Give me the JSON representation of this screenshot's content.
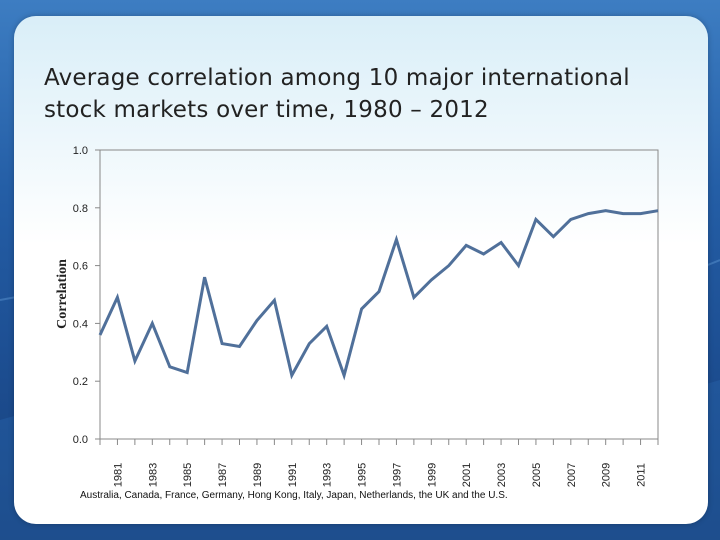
{
  "slide": {
    "title": "Average correlation among 10 major international\nstock markets over time, 1980 – 2012",
    "footnote": "Australia, Canada, France, Germany, Hong Kong, Italy, Japan, Netherlands, the UK and the U.S."
  },
  "colors": {
    "line": "#50709a",
    "axis": "#888888",
    "background_top": "#3d7dc2",
    "background_bottom": "#173f7a"
  },
  "chart_data": {
    "type": "line",
    "title": "Average correlation among 10 major international stock markets over time, 1980 – 2012",
    "xlabel": "",
    "ylabel": "Correlation",
    "ylim": [
      0.0,
      1.0
    ],
    "yticks": [
      "0.0",
      "0.2",
      "0.4",
      "0.6",
      "0.8",
      "1.0"
    ],
    "grid": false,
    "xtick_labels": [
      "1981",
      "1983",
      "1985",
      "1987",
      "1989",
      "1991",
      "1993",
      "1995",
      "1997",
      "1999",
      "2001",
      "2003",
      "2005",
      "2007",
      "2009",
      "2011"
    ],
    "x": [
      1980,
      1981,
      1982,
      1983,
      1984,
      1985,
      1986,
      1987,
      1988,
      1989,
      1990,
      1991,
      1992,
      1993,
      1994,
      1995,
      1996,
      1997,
      1998,
      1999,
      2000,
      2001,
      2002,
      2003,
      2004,
      2005,
      2006,
      2007,
      2008,
      2009,
      2010,
      2011,
      2012
    ],
    "series": [
      {
        "values": [
          0.36,
          0.49,
          0.27,
          0.4,
          0.25,
          0.23,
          0.56,
          0.33,
          0.32,
          0.41,
          0.48,
          0.22,
          0.33,
          0.39,
          0.22,
          0.45,
          0.51,
          0.69,
          0.49,
          0.55,
          0.6,
          0.67,
          0.64,
          0.68,
          0.6,
          0.76,
          0.7,
          0.76,
          0.78,
          0.79,
          0.78,
          0.78,
          0.79
        ]
      }
    ]
  }
}
